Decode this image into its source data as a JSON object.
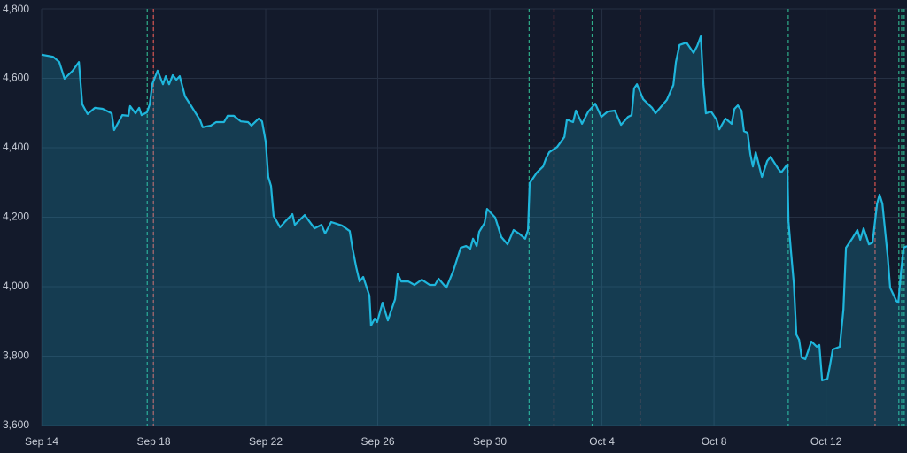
{
  "chart_data": {
    "type": "area",
    "series": [
      {
        "color": "#1fb6dc",
        "x": [
          0,
          0.41,
          0.63,
          0.82,
          1.11,
          1.33,
          1.45,
          1.64,
          1.9,
          2.18,
          2.5,
          2.59,
          2.88,
          3.1,
          3.16,
          3.35,
          3.48,
          3.57,
          3.76,
          3.86,
          3.95,
          4.14,
          4.33,
          4.43,
          4.55,
          4.68,
          4.81,
          4.93,
          5.12,
          5.38,
          5.66,
          5.75,
          6.04,
          6.23,
          6.51,
          6.64,
          6.86,
          7.11,
          7.37,
          7.49,
          7.75,
          7.87,
          8,
          8.09,
          8.19,
          8.28,
          8.51,
          8.7,
          8.95,
          9.04,
          9.39,
          9.74,
          9.99,
          10.12,
          10.34,
          10.72,
          11,
          11.1,
          11.23,
          11.35,
          11.48,
          11.7,
          11.76,
          11.89,
          11.98,
          12.17,
          12.36,
          12.62,
          12.71,
          12.84,
          13.09,
          13.31,
          13.57,
          13.85,
          14.04,
          14.17,
          14.45,
          14.7,
          14.96,
          15.15,
          15.3,
          15.4,
          15.53,
          15.62,
          15.81,
          15.9,
          16.19,
          16.41,
          16.63,
          16.85,
          17.04,
          17.26,
          17.36,
          17.42,
          17.68,
          17.9,
          18.02,
          18.12,
          18.4,
          18.66,
          18.75,
          18.97,
          19.07,
          19.29,
          19.51,
          19.76,
          19.98,
          20.2,
          20.46,
          20.68,
          20.93,
          21.06,
          21.15,
          21.25,
          21.47,
          21.79,
          21.91,
          22.32,
          22.55,
          22.64,
          22.77,
          23.02,
          23.27,
          23.4,
          23.53,
          23.62,
          23.71,
          23.9,
          24.09,
          24.19,
          24.41,
          24.63,
          24.73,
          24.85,
          24.98,
          25.07,
          25.2,
          25.3,
          25.39,
          25.49,
          25.71,
          25.9,
          26.02,
          26.28,
          26.4,
          26.62,
          26.66,
          26.75,
          26.85,
          26.94,
          27.04,
          27.13,
          27.26,
          27.48,
          27.67,
          27.76,
          27.86,
          28.05,
          28.14,
          28.24,
          28.49,
          28.62,
          28.71,
          28.93,
          29.12,
          29.22,
          29.34,
          29.53,
          29.66,
          29.82,
          29.91,
          30.01,
          30.2,
          30.29,
          30.51,
          30.58,
          30.67,
          30.77,
          30.89
        ],
        "values": [
          4668,
          4662,
          4647,
          4599,
          4622,
          4647,
          4525,
          4497,
          4515,
          4512,
          4499,
          4451,
          4494,
          4492,
          4520,
          4499,
          4515,
          4494,
          4502,
          4525,
          4583,
          4622,
          4583,
          4606,
          4583,
          4609,
          4596,
          4606,
          4548,
          4515,
          4479,
          4459,
          4464,
          4474,
          4474,
          4492,
          4492,
          4476,
          4474,
          4464,
          4484,
          4476,
          4418,
          4316,
          4290,
          4204,
          4171,
          4188,
          4209,
          4178,
          4206,
          4168,
          4178,
          4153,
          4186,
          4176,
          4160,
          4109,
          4056,
          4015,
          4028,
          3974,
          3888,
          3908,
          3898,
          3954,
          3903,
          3964,
          4036,
          4015,
          4015,
          4005,
          4020,
          4005,
          4005,
          4023,
          3997,
          4046,
          4112,
          4117,
          4109,
          4138,
          4117,
          4158,
          4183,
          4224,
          4199,
          4143,
          4122,
          4163,
          4153,
          4138,
          4163,
          4298,
          4329,
          4346,
          4372,
          4387,
          4402,
          4431,
          4481,
          4474,
          4507,
          4469,
          4504,
          4527,
          4489,
          4504,
          4507,
          4466,
          4489,
          4494,
          4571,
          4583,
          4540,
          4515,
          4499,
          4538,
          4581,
          4647,
          4696,
          4703,
          4673,
          4693,
          4721,
          4583,
          4499,
          4504,
          4481,
          4453,
          4484,
          4469,
          4512,
          4522,
          4507,
          4448,
          4443,
          4380,
          4346,
          4387,
          4316,
          4362,
          4374,
          4341,
          4329,
          4352,
          4188,
          4099,
          4010,
          3862,
          3847,
          3796,
          3791,
          3842,
          3827,
          3832,
          3730,
          3735,
          3773,
          3819,
          3827,
          3934,
          4112,
          4138,
          4163,
          4135,
          4168,
          4122,
          4127,
          4239,
          4265,
          4239,
          4087,
          3997,
          3959,
          3954,
          4036,
          4112,
          4117
        ]
      }
    ],
    "markers": [
      {
        "x": 3.77,
        "color": "#2fae8a"
      },
      {
        "x": 3.99,
        "color": "#d9534f"
      },
      {
        "x": 17.4,
        "color": "#2fae8a"
      },
      {
        "x": 18.29,
        "color": "#d9534f"
      },
      {
        "x": 19.65,
        "color": "#2fae8a"
      },
      {
        "x": 21.36,
        "color": "#d9534f"
      },
      {
        "x": 26.65,
        "color": "#2fae8a"
      },
      {
        "x": 29.75,
        "color": "#d9534f"
      },
      {
        "x": 30.6,
        "color": "#2fae8a"
      },
      {
        "x": 30.7,
        "color": "#2fae8a"
      },
      {
        "x": 30.79,
        "color": "#2fae8a"
      }
    ],
    "xlim": [
      0,
      30.89
    ],
    "xticks": [
      {
        "value": 0,
        "label": "Sep 14"
      },
      {
        "value": 4,
        "label": "Sep 18"
      },
      {
        "value": 8,
        "label": "Sep 22"
      },
      {
        "value": 12,
        "label": "Sep 26"
      },
      {
        "value": 16,
        "label": "Sep 30"
      },
      {
        "value": 20,
        "label": "Oct 4"
      },
      {
        "value": 24,
        "label": "Oct 8"
      },
      {
        "value": 28,
        "label": "Oct 12"
      }
    ],
    "ylim": [
      3600,
      4800
    ],
    "yticks": [
      {
        "value": 3600,
        "label": "3,600"
      },
      {
        "value": 3800,
        "label": "3,800"
      },
      {
        "value": 4000,
        "label": "4,000"
      },
      {
        "value": 4200,
        "label": "4,200"
      },
      {
        "value": 4400,
        "label": "4,400"
      },
      {
        "value": 4600,
        "label": "4,600"
      },
      {
        "value": 4800,
        "label": "4,800"
      }
    ],
    "grid": true
  }
}
